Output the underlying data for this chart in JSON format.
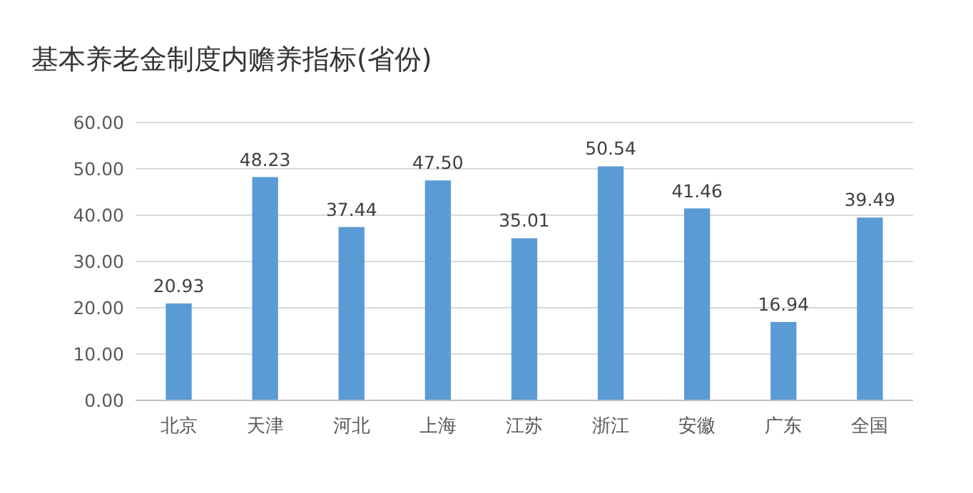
{
  "chart_data": {
    "type": "bar",
    "title": "基本养老金制度内赡养指标(省份)",
    "categories": [
      "北京",
      "天津",
      "河北",
      "上海",
      "江苏",
      "浙江",
      "安徽",
      "广东",
      "全国"
    ],
    "values": [
      20.93,
      48.23,
      37.44,
      47.5,
      35.01,
      50.54,
      41.46,
      16.94,
      39.49
    ],
    "value_labels": [
      "20.93",
      "48.23",
      "37.44",
      "47.50",
      "35.01",
      "50.54",
      "41.46",
      "16.94",
      "39.49"
    ],
    "color": "#5b9bd5",
    "ylim": [
      0,
      60
    ],
    "yticks": [
      {
        "value": 0,
        "label": "0.00"
      },
      {
        "value": 10,
        "label": "10.00"
      },
      {
        "value": 20,
        "label": "20.00"
      },
      {
        "value": 30,
        "label": "30.00"
      },
      {
        "value": 40,
        "label": "40.00"
      },
      {
        "value": 50,
        "label": "50.00"
      },
      {
        "value": 60,
        "label": "60.00"
      }
    ],
    "grid": "y"
  }
}
